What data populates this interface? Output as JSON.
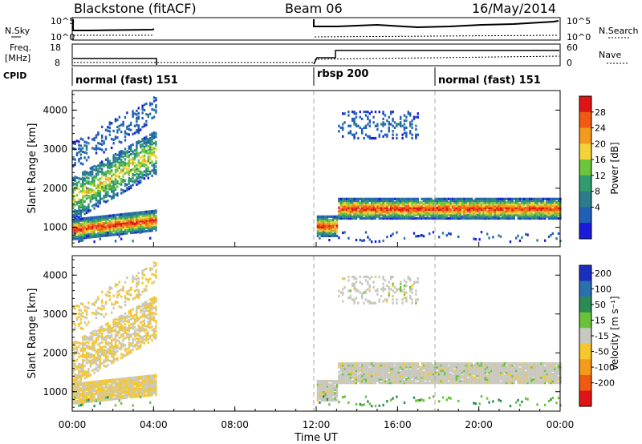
{
  "header": {
    "site": "Blackstone (fitACF)",
    "beam": "Beam 06",
    "date": "16/May/2014"
  },
  "top_panels": {
    "nsky_label": "N.Sky",
    "nsearch_label": "N.Search",
    "noise_ticks": [
      "10^5",
      "10^0"
    ],
    "freq_label_line1": "Freq.",
    "freq_label_line2": "[MHz]",
    "freq_ticks": [
      "18",
      "8"
    ],
    "nave_label": "Nave",
    "nave_ticks": [
      "60",
      "0"
    ],
    "cpid_label": "CPID",
    "cpid_segments": [
      {
        "label": "normal (fast) 151",
        "start_hour": 0
      },
      {
        "label": "rbsp 200",
        "start_hour": 12
      },
      {
        "label": "normal (fast) 151",
        "start_hour": 18
      }
    ]
  },
  "colors": {
    "power": [
      "#1a1adb",
      "#1f5fb7",
      "#2b7d8a",
      "#2f9b6e",
      "#6cc53a",
      "#f3d23a",
      "#f39a1c",
      "#f05a12",
      "#e01414"
    ],
    "velocity": [
      "#1b2fbf",
      "#2a6fb0",
      "#2c8a55",
      "#6bc23a",
      "#c8c8c0",
      "#f5c72c",
      "#f59a1c",
      "#f05a12",
      "#e01414"
    ]
  },
  "chart_data": [
    {
      "type": "heatmap",
      "title": "Power",
      "ylabel": "Slant Range [km]",
      "xlabel": "Time UT",
      "x_ticks": [
        "00:00",
        "04:00",
        "08:00",
        "12:00",
        "16:00",
        "20:00",
        "00:00"
      ],
      "y_ticks": [
        1000,
        2000,
        3000,
        4000
      ],
      "ylim": [
        500,
        4500
      ],
      "xlim_hours": [
        0,
        24
      ],
      "colorbar_label": "Power [dB]",
      "colorbar_ticks": [
        4,
        8,
        12,
        16,
        20,
        24,
        28
      ],
      "data_gaps_hours": [
        [
          4.1,
          12.0
        ]
      ],
      "bands": [
        {
          "start": 0,
          "end": 4.1,
          "center_start": 920,
          "center_end": 1150,
          "level": "high"
        },
        {
          "start": 0,
          "end": 4.1,
          "center_start": 1700,
          "center_end": 2900,
          "level": "mid"
        },
        {
          "start": 0,
          "end": 4.1,
          "center_start": 2800,
          "center_end": 4000,
          "level": "low"
        },
        {
          "start": 12,
          "end": 13,
          "center_start": 1000,
          "center_end": 1000,
          "level": "high"
        },
        {
          "start": 13,
          "end": 24,
          "center_start": 1450,
          "center_end": 1450,
          "level": "high"
        },
        {
          "start": 13,
          "end": 17,
          "center_start": 3600,
          "center_end": 3600,
          "level": "low"
        }
      ]
    },
    {
      "type": "heatmap",
      "title": "Velocity",
      "ylabel": "Slant Range [km]",
      "xlabel": "Time UT",
      "x_ticks": [
        "00:00",
        "04:00",
        "08:00",
        "12:00",
        "16:00",
        "20:00",
        "00:00"
      ],
      "y_ticks": [
        1000,
        2000,
        3000,
        4000
      ],
      "ylim": [
        500,
        4500
      ],
      "xlim_hours": [
        0,
        24
      ],
      "colorbar_label": "Velocity [m s⁻¹]",
      "colorbar_ticks": [
        200,
        100,
        50,
        15,
        -15,
        -50,
        -100,
        -200
      ]
    }
  ],
  "footer": {
    "xlabel": "Time UT"
  }
}
